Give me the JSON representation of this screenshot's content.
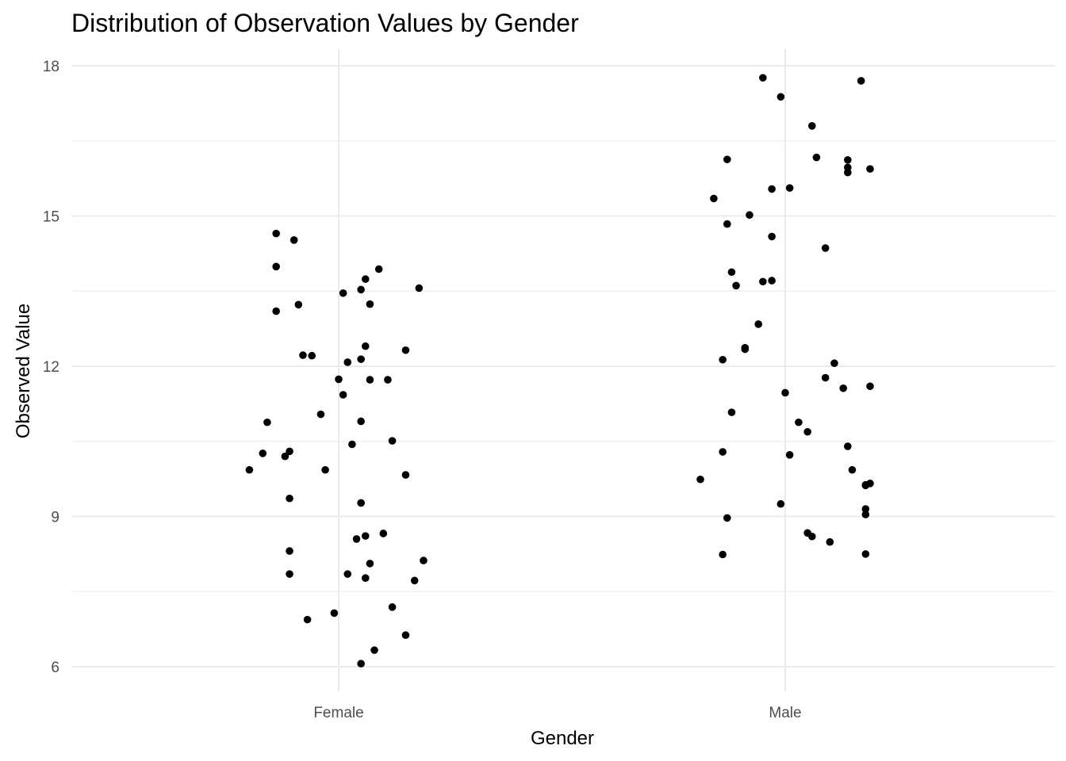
{
  "chart_data": {
    "type": "scatter",
    "title": "Distribution of Observation Values by Gender",
    "xlabel": "Gender",
    "ylabel": "Observed Value",
    "categories": [
      "Female",
      "Male"
    ],
    "ylim": [
      5.5,
      18.3
    ],
    "yticks": [
      6,
      9,
      12,
      15,
      18
    ],
    "grid": true,
    "jitter": true,
    "series": [
      {
        "category": "Female",
        "points": [
          {
            "x": -0.14,
            "y": 14.65
          },
          {
            "x": -0.1,
            "y": 14.52
          },
          {
            "x": -0.14,
            "y": 13.99
          },
          {
            "x": -0.14,
            "y": 13.1
          },
          {
            "x": -0.09,
            "y": 13.23
          },
          {
            "x": 0.09,
            "y": 13.94
          },
          {
            "x": 0.06,
            "y": 13.74
          },
          {
            "x": 0.05,
            "y": 13.53
          },
          {
            "x": 0.01,
            "y": 13.46
          },
          {
            "x": 0.18,
            "y": 13.56
          },
          {
            "x": 0.07,
            "y": 13.24
          },
          {
            "x": 0.06,
            "y": 12.4
          },
          {
            "x": 0.15,
            "y": 12.32
          },
          {
            "x": -0.08,
            "y": 12.22
          },
          {
            "x": -0.06,
            "y": 12.21
          },
          {
            "x": 0.05,
            "y": 12.14
          },
          {
            "x": 0.02,
            "y": 12.08
          },
          {
            "x": 0.11,
            "y": 11.73
          },
          {
            "x": 0.07,
            "y": 11.73
          },
          {
            "x": 0.0,
            "y": 11.74
          },
          {
            "x": 0.01,
            "y": 11.43
          },
          {
            "x": -0.04,
            "y": 11.04
          },
          {
            "x": -0.16,
            "y": 10.88
          },
          {
            "x": 0.05,
            "y": 10.9
          },
          {
            "x": 0.12,
            "y": 10.51
          },
          {
            "x": 0.03,
            "y": 10.44
          },
          {
            "x": -0.11,
            "y": 10.3
          },
          {
            "x": -0.17,
            "y": 10.26
          },
          {
            "x": -0.12,
            "y": 10.2
          },
          {
            "x": -0.2,
            "y": 9.93
          },
          {
            "x": -0.03,
            "y": 9.93
          },
          {
            "x": 0.15,
            "y": 9.83
          },
          {
            "x": -0.11,
            "y": 9.36
          },
          {
            "x": 0.05,
            "y": 9.27
          },
          {
            "x": 0.1,
            "y": 8.66
          },
          {
            "x": 0.06,
            "y": 8.61
          },
          {
            "x": 0.04,
            "y": 8.55
          },
          {
            "x": -0.11,
            "y": 8.31
          },
          {
            "x": 0.19,
            "y": 8.12
          },
          {
            "x": 0.07,
            "y": 8.06
          },
          {
            "x": -0.11,
            "y": 7.85
          },
          {
            "x": 0.02,
            "y": 7.85
          },
          {
            "x": 0.06,
            "y": 7.77
          },
          {
            "x": 0.17,
            "y": 7.72
          },
          {
            "x": 0.12,
            "y": 7.19
          },
          {
            "x": -0.01,
            "y": 7.07
          },
          {
            "x": -0.07,
            "y": 6.94
          },
          {
            "x": 0.15,
            "y": 6.63
          },
          {
            "x": 0.08,
            "y": 6.33
          },
          {
            "x": 0.05,
            "y": 6.06
          }
        ]
      },
      {
        "category": "Male",
        "points": [
          {
            "x": -0.05,
            "y": 17.76
          },
          {
            "x": 0.17,
            "y": 17.7
          },
          {
            "x": -0.01,
            "y": 17.38
          },
          {
            "x": 0.06,
            "y": 16.8
          },
          {
            "x": 0.07,
            "y": 16.17
          },
          {
            "x": -0.13,
            "y": 16.13
          },
          {
            "x": 0.14,
            "y": 16.12
          },
          {
            "x": 0.14,
            "y": 15.97
          },
          {
            "x": 0.19,
            "y": 15.94
          },
          {
            "x": 0.14,
            "y": 15.87
          },
          {
            "x": 0.01,
            "y": 15.56
          },
          {
            "x": -0.03,
            "y": 15.54
          },
          {
            "x": -0.16,
            "y": 15.35
          },
          {
            "x": -0.08,
            "y": 15.02
          },
          {
            "x": -0.13,
            "y": 14.84
          },
          {
            "x": -0.03,
            "y": 14.59
          },
          {
            "x": 0.09,
            "y": 14.36
          },
          {
            "x": -0.12,
            "y": 13.88
          },
          {
            "x": -0.03,
            "y": 13.71
          },
          {
            "x": -0.05,
            "y": 13.69
          },
          {
            "x": -0.11,
            "y": 13.61
          },
          {
            "x": -0.06,
            "y": 12.84
          },
          {
            "x": -0.09,
            "y": 12.37
          },
          {
            "x": -0.09,
            "y": 12.34
          },
          {
            "x": -0.14,
            "y": 12.13
          },
          {
            "x": 0.11,
            "y": 12.06
          },
          {
            "x": 0.09,
            "y": 11.77
          },
          {
            "x": 0.19,
            "y": 11.6
          },
          {
            "x": 0.13,
            "y": 11.56
          },
          {
            "x": 0.0,
            "y": 11.47
          },
          {
            "x": -0.12,
            "y": 11.08
          },
          {
            "x": 0.03,
            "y": 10.88
          },
          {
            "x": 0.05,
            "y": 10.69
          },
          {
            "x": 0.14,
            "y": 10.4
          },
          {
            "x": -0.14,
            "y": 10.29
          },
          {
            "x": 0.01,
            "y": 10.23
          },
          {
            "x": 0.15,
            "y": 9.93
          },
          {
            "x": -0.19,
            "y": 9.74
          },
          {
            "x": 0.19,
            "y": 9.66
          },
          {
            "x": 0.18,
            "y": 9.62
          },
          {
            "x": 0.18,
            "y": 9.63
          },
          {
            "x": -0.01,
            "y": 9.25
          },
          {
            "x": 0.18,
            "y": 9.15
          },
          {
            "x": 0.18,
            "y": 9.04
          },
          {
            "x": -0.13,
            "y": 8.97
          },
          {
            "x": 0.05,
            "y": 8.67
          },
          {
            "x": 0.06,
            "y": 8.6
          },
          {
            "x": 0.1,
            "y": 8.49
          },
          {
            "x": -0.14,
            "y": 8.24
          },
          {
            "x": 0.18,
            "y": 8.25
          }
        ]
      }
    ]
  }
}
